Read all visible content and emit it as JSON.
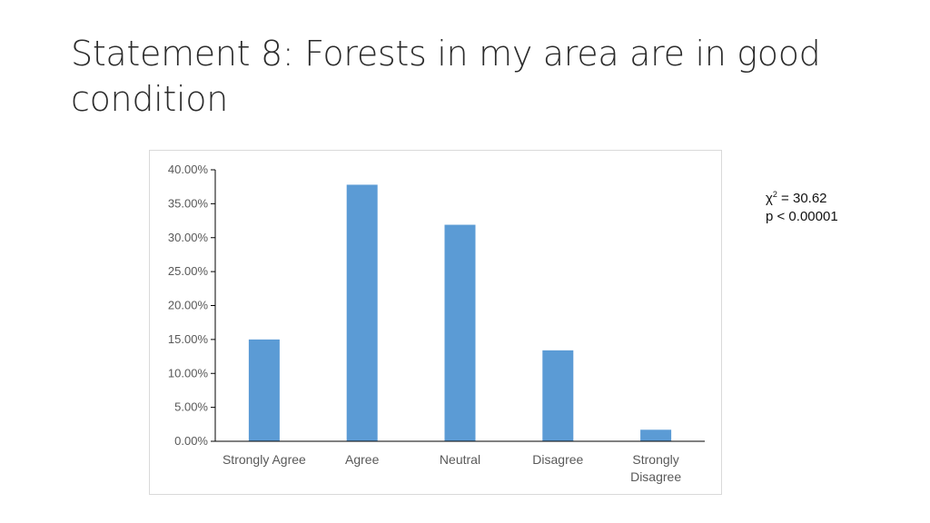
{
  "slide": {
    "title": "Statement 8: Forests in my area are in good condition"
  },
  "stats": {
    "chi_symbol": "χ",
    "chi_exponent": "2",
    "chi_value": " = 30.62",
    "p_line": "p < 0.00001"
  },
  "chart_data": {
    "type": "bar",
    "title": "",
    "xlabel": "",
    "ylabel": "",
    "categories": [
      "Strongly Agree",
      "Agree",
      "Neutral",
      "Disagree",
      "Strongly Disagree"
    ],
    "category_lines": [
      [
        "Strongly Agree"
      ],
      [
        "Agree"
      ],
      [
        "Neutral"
      ],
      [
        "Disagree"
      ],
      [
        "Strongly",
        "Disagree"
      ]
    ],
    "values": [
      15.0,
      37.8,
      31.9,
      13.4,
      1.7
    ],
    "ylim": [
      0,
      40
    ],
    "yticks": [
      0,
      5,
      10,
      15,
      20,
      25,
      30,
      35,
      40
    ],
    "ytick_labels": [
      "0.00%",
      "5.00%",
      "10.00%",
      "15.00%",
      "20.00%",
      "25.00%",
      "30.00%",
      "35.00%",
      "40.00%"
    ],
    "grid": false,
    "legend": "none",
    "bar_color": "#5b9bd5",
    "axis_color": "#000000",
    "tick_label_color": "#595959"
  }
}
